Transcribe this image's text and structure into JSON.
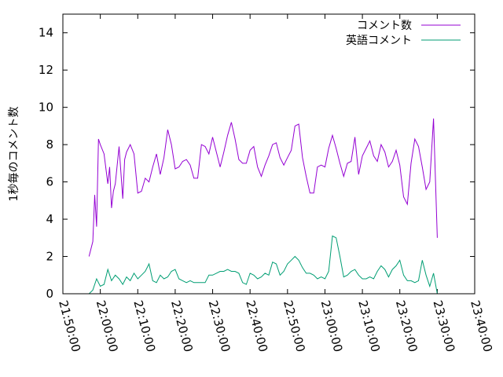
{
  "chart_data": {
    "type": "line",
    "title": "",
    "xlabel": "",
    "ylabel": "1秒毎のコメント数",
    "xlim": [
      "21:50:00",
      "23:40:00"
    ],
    "ylim": [
      0,
      15
    ],
    "x_ticks": [
      "21:50:00",
      "22:00:00",
      "22:10:00",
      "22:20:00",
      "22:30:00",
      "22:40:00",
      "22:50:00",
      "23:00:00",
      "23:10:00",
      "23:20:00",
      "23:30:00",
      "23:40:00"
    ],
    "y_ticks": [
      0,
      2,
      4,
      6,
      8,
      10,
      12,
      14
    ],
    "legend_position": "top-right",
    "grid": false,
    "series": [
      {
        "name": "コメント数",
        "color": "#9400d3",
        "x": [
          "21:57:00",
          "21:58:00",
          "21:58:30",
          "21:59:00",
          "21:59:30",
          "22:00:00",
          "22:01:00",
          "22:02:00",
          "22:02:30",
          "22:03:00",
          "22:03:30",
          "22:04:00",
          "22:05:00",
          "22:06:00",
          "22:06:30",
          "22:07:00",
          "22:08:00",
          "22:09:00",
          "22:10:00",
          "22:11:00",
          "22:12:00",
          "22:13:00",
          "22:14:00",
          "22:15:00",
          "22:16:00",
          "22:17:00",
          "22:18:00",
          "22:19:00",
          "22:20:00",
          "22:21:00",
          "22:22:00",
          "22:23:00",
          "22:24:00",
          "22:25:00",
          "22:26:00",
          "22:27:00",
          "22:28:00",
          "22:29:00",
          "22:30:00",
          "22:31:00",
          "22:32:00",
          "22:33:00",
          "22:34:00",
          "22:35:00",
          "22:36:00",
          "22:37:00",
          "22:38:00",
          "22:39:00",
          "22:40:00",
          "22:41:00",
          "22:42:00",
          "22:43:00",
          "22:44:00",
          "22:45:00",
          "22:46:00",
          "22:47:00",
          "22:48:00",
          "22:49:00",
          "22:50:00",
          "22:51:00",
          "22:52:00",
          "22:53:00",
          "22:54:00",
          "22:55:00",
          "22:56:00",
          "22:57:00",
          "22:58:00",
          "22:59:00",
          "23:00:00",
          "23:01:00",
          "23:02:00",
          "23:03:00",
          "23:04:00",
          "23:05:00",
          "23:06:00",
          "23:07:00",
          "23:08:00",
          "23:09:00",
          "23:10:00",
          "23:11:00",
          "23:12:00",
          "23:13:00",
          "23:14:00",
          "23:15:00",
          "23:16:00",
          "23:17:00",
          "23:18:00",
          "23:19:00",
          "23:20:00",
          "23:21:00",
          "23:22:00",
          "23:23:00",
          "23:24:00",
          "23:25:00",
          "23:26:00",
          "23:27:00",
          "23:28:00",
          "23:29:00",
          "23:30:00"
        ],
        "values": [
          2.0,
          2.8,
          5.3,
          3.6,
          8.3,
          8.0,
          7.5,
          5.9,
          6.8,
          4.6,
          5.5,
          5.9,
          7.9,
          5.1,
          7.2,
          7.6,
          8.0,
          7.5,
          5.4,
          5.5,
          6.2,
          6.0,
          6.8,
          7.5,
          6.4,
          7.3,
          8.8,
          8.0,
          6.7,
          6.8,
          7.1,
          7.2,
          6.9,
          6.2,
          6.2,
          8.0,
          7.9,
          7.5,
          8.4,
          7.6,
          6.8,
          7.6,
          8.5,
          9.2,
          8.3,
          7.2,
          7.0,
          7.0,
          7.7,
          7.9,
          6.8,
          6.3,
          6.9,
          7.4,
          8.0,
          8.1,
          7.3,
          6.9,
          7.3,
          7.7,
          9.0,
          9.1,
          7.3,
          6.3,
          5.4,
          5.4,
          6.8,
          6.9,
          6.8,
          7.8,
          8.5,
          7.8,
          7.0,
          6.3,
          7.0,
          7.1,
          8.4,
          6.4,
          7.4,
          7.8,
          8.2,
          7.4,
          7.1,
          8.0,
          7.6,
          6.8,
          7.1,
          7.7,
          6.9,
          5.2,
          4.8,
          7.0,
          8.3,
          7.9,
          6.8,
          5.6,
          6.0,
          9.4,
          3.0
        ]
      },
      {
        "name": "英語コメント",
        "color": "#009e73",
        "x": [
          "21:57:00",
          "21:58:00",
          "21:59:00",
          "22:00:00",
          "22:01:00",
          "22:02:00",
          "22:03:00",
          "22:04:00",
          "22:05:00",
          "22:06:00",
          "22:07:00",
          "22:08:00",
          "22:09:00",
          "22:10:00",
          "22:11:00",
          "22:12:00",
          "22:13:00",
          "22:14:00",
          "22:15:00",
          "22:16:00",
          "22:17:00",
          "22:18:00",
          "22:19:00",
          "22:20:00",
          "22:21:00",
          "22:22:00",
          "22:23:00",
          "22:24:00",
          "22:25:00",
          "22:26:00",
          "22:27:00",
          "22:28:00",
          "22:29:00",
          "22:30:00",
          "22:31:00",
          "22:32:00",
          "22:33:00",
          "22:34:00",
          "22:35:00",
          "22:36:00",
          "22:37:00",
          "22:38:00",
          "22:39:00",
          "22:40:00",
          "22:41:00",
          "22:42:00",
          "22:43:00",
          "22:44:00",
          "22:45:00",
          "22:46:00",
          "22:47:00",
          "22:48:00",
          "22:49:00",
          "22:50:00",
          "22:51:00",
          "22:52:00",
          "22:53:00",
          "22:54:00",
          "22:55:00",
          "22:56:00",
          "22:57:00",
          "22:58:00",
          "22:59:00",
          "23:00:00",
          "23:01:00",
          "23:02:00",
          "23:03:00",
          "23:04:00",
          "23:05:00",
          "23:06:00",
          "23:07:00",
          "23:08:00",
          "23:09:00",
          "23:10:00",
          "23:11:00",
          "23:12:00",
          "23:13:00",
          "23:14:00",
          "23:15:00",
          "23:16:00",
          "23:17:00",
          "23:18:00",
          "23:19:00",
          "23:20:00",
          "23:21:00",
          "23:22:00",
          "23:23:00",
          "23:24:00",
          "23:25:00",
          "23:26:00",
          "23:27:00",
          "23:28:00",
          "23:29:00",
          "23:30:00"
        ],
        "values": [
          0.0,
          0.2,
          0.8,
          0.4,
          0.5,
          1.3,
          0.7,
          1.0,
          0.8,
          0.5,
          0.9,
          0.7,
          1.1,
          0.8,
          1.0,
          1.2,
          1.6,
          0.7,
          0.6,
          1.0,
          0.8,
          0.9,
          1.2,
          1.3,
          0.8,
          0.7,
          0.6,
          0.7,
          0.6,
          0.6,
          0.6,
          0.6,
          1.0,
          1.0,
          1.1,
          1.2,
          1.2,
          1.3,
          1.2,
          1.2,
          1.1,
          0.6,
          0.5,
          1.1,
          1.0,
          0.8,
          0.9,
          1.1,
          1.0,
          1.7,
          1.6,
          1.0,
          1.2,
          1.6,
          1.8,
          2.0,
          1.8,
          1.4,
          1.1,
          1.1,
          1.0,
          0.8,
          0.9,
          0.8,
          1.2,
          3.1,
          3.0,
          2.0,
          0.9,
          1.0,
          1.2,
          1.3,
          1.0,
          0.8,
          0.8,
          0.9,
          0.8,
          1.2,
          1.5,
          1.3,
          0.9,
          1.3,
          1.5,
          1.8,
          1.0,
          0.7,
          0.7,
          0.6,
          0.7,
          1.8,
          1.0,
          0.4,
          1.1,
          0.0
        ]
      }
    ]
  }
}
